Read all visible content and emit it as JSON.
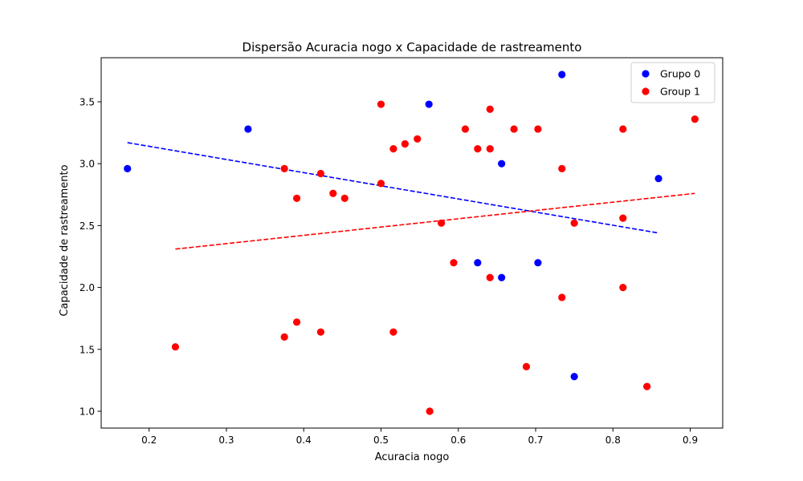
{
  "chart_data": {
    "type": "scatter",
    "title": "Dispersão Acuracia nogo x Capacidade de rastreamento",
    "xlabel": "Acuracia nogo",
    "ylabel": "Capacidade de rastreamento",
    "xlim": [
      0.138,
      0.942
    ],
    "ylim": [
      0.864,
      3.856
    ],
    "xticks": [
      0.2,
      0.3,
      0.4,
      0.5,
      0.6,
      0.7,
      0.8,
      0.9
    ],
    "xtick_labels": [
      "0.2",
      "0.3",
      "0.4",
      "0.5",
      "0.6",
      "0.7",
      "0.8",
      "0.9"
    ],
    "yticks": [
      1.0,
      1.5,
      2.0,
      2.5,
      3.0,
      3.5
    ],
    "ytick_labels": [
      "1.0",
      "1.5",
      "2.0",
      "2.5",
      "3.0",
      "3.5"
    ],
    "legend_position": "top-right",
    "grid": false,
    "series": [
      {
        "name": "Grupo 0",
        "color": "#0000ff",
        "points": [
          [
            0.172,
            2.96
          ],
          [
            0.328,
            3.28
          ],
          [
            0.562,
            3.48
          ],
          [
            0.656,
            3.0
          ],
          [
            0.734,
            3.72
          ],
          [
            0.859,
            2.88
          ],
          [
            0.625,
            2.2
          ],
          [
            0.656,
            2.08
          ],
          [
            0.703,
            2.2
          ],
          [
            0.75,
            1.28
          ]
        ],
        "trend": {
          "x": [
            0.172,
            0.859
          ],
          "y": [
            3.17,
            2.44
          ]
        }
      },
      {
        "name": "Group 1",
        "color": "#ff0000",
        "points": [
          [
            0.234,
            1.52
          ],
          [
            0.375,
            2.96
          ],
          [
            0.391,
            2.72
          ],
          [
            0.422,
            2.92
          ],
          [
            0.438,
            2.76
          ],
          [
            0.453,
            2.72
          ],
          [
            0.375,
            1.6
          ],
          [
            0.391,
            1.72
          ],
          [
            0.422,
            1.64
          ],
          [
            0.5,
            3.48
          ],
          [
            0.5,
            2.84
          ],
          [
            0.516,
            3.12
          ],
          [
            0.531,
            3.16
          ],
          [
            0.547,
            3.2
          ],
          [
            0.516,
            1.64
          ],
          [
            0.578,
            2.52
          ],
          [
            0.594,
            2.2
          ],
          [
            0.563,
            1.0
          ],
          [
            0.609,
            3.28
          ],
          [
            0.625,
            3.12
          ],
          [
            0.641,
            3.44
          ],
          [
            0.641,
            3.12
          ],
          [
            0.641,
            2.08
          ],
          [
            0.672,
            3.28
          ],
          [
            0.688,
            1.36
          ],
          [
            0.703,
            3.28
          ],
          [
            0.734,
            2.96
          ],
          [
            0.734,
            1.92
          ],
          [
            0.75,
            2.52
          ],
          [
            0.813,
            3.28
          ],
          [
            0.813,
            2.56
          ],
          [
            0.813,
            2.0
          ],
          [
            0.844,
            1.2
          ],
          [
            0.906,
            3.36
          ]
        ],
        "trend": {
          "x": [
            0.234,
            0.906
          ],
          "y": [
            2.31,
            2.76
          ]
        }
      }
    ]
  }
}
